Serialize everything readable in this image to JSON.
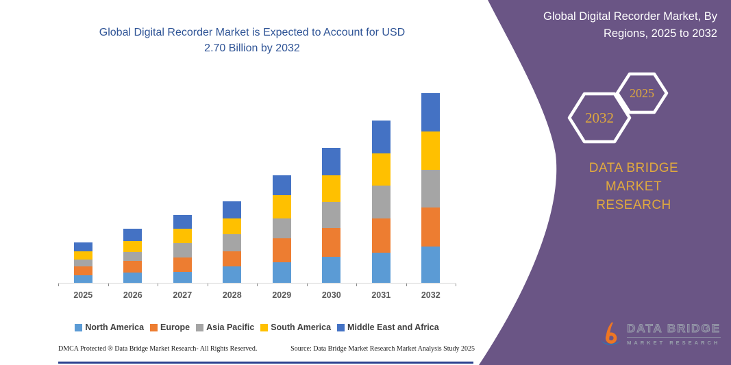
{
  "chart": {
    "title_lines": [
      "Global Digital Recorder Market is Expected to Account for USD",
      "2.70 Billion by 2032"
    ],
    "title_color": "#2F5496"
  },
  "chart_data": {
    "type": "bar",
    "stacked": true,
    "title": "Global Digital Recorder Market is Expected to Account for USD 2.70 Billion by 2032",
    "unit": "USD Billion",
    "categories": [
      "2025",
      "2026",
      "2027",
      "2028",
      "2029",
      "2030",
      "2031",
      "2032"
    ],
    "series": [
      {
        "name": "North America",
        "color": "#5B9BD5",
        "values": [
          0.11,
          0.15,
          0.16,
          0.23,
          0.29,
          0.37,
          0.43,
          0.52
        ]
      },
      {
        "name": "Europe",
        "color": "#ED7D31",
        "values": [
          0.12,
          0.16,
          0.2,
          0.22,
          0.34,
          0.41,
          0.49,
          0.55
        ]
      },
      {
        "name": "Asia Pacific",
        "color": "#A5A5A5",
        "values": [
          0.1,
          0.13,
          0.21,
          0.24,
          0.29,
          0.37,
          0.47,
          0.54
        ]
      },
      {
        "name": "South America",
        "color": "#FFC000",
        "values": [
          0.12,
          0.16,
          0.2,
          0.23,
          0.33,
          0.38,
          0.45,
          0.55
        ]
      },
      {
        "name": "Middle East and Africa",
        "color": "#4472C4",
        "values": [
          0.13,
          0.17,
          0.2,
          0.24,
          0.28,
          0.39,
          0.47,
          0.54
        ]
      }
    ],
    "totals": [
      0.58,
      0.77,
      0.97,
      1.16,
      1.53,
      1.92,
      2.31,
      2.7
    ],
    "ylim": [
      0,
      2.85
    ],
    "grid": false,
    "y_axis_visible": false,
    "legend_position": "bottom"
  },
  "footer": {
    "left": "DMCA Protected ® Data Bridge Market Research-  All Rights Reserved.",
    "right": "Source: Data Bridge Market Research  Market Analysis Study 2025"
  },
  "side_panel": {
    "panel_color": "#6A5585",
    "gold_color": "#DCA63F",
    "title_lines": [
      "Global Digital Recorder Market, By",
      "Regions, 2025 to 2032"
    ],
    "hexagon_back_label": "2032",
    "hexagon_front_label": "2025",
    "brand_lines": [
      "DATA BRIDGE MARKET",
      "RESEARCH"
    ],
    "logo": {
      "text_main": "DATA BRIDGE",
      "text_sub": "MARKET RESEARCH"
    }
  }
}
